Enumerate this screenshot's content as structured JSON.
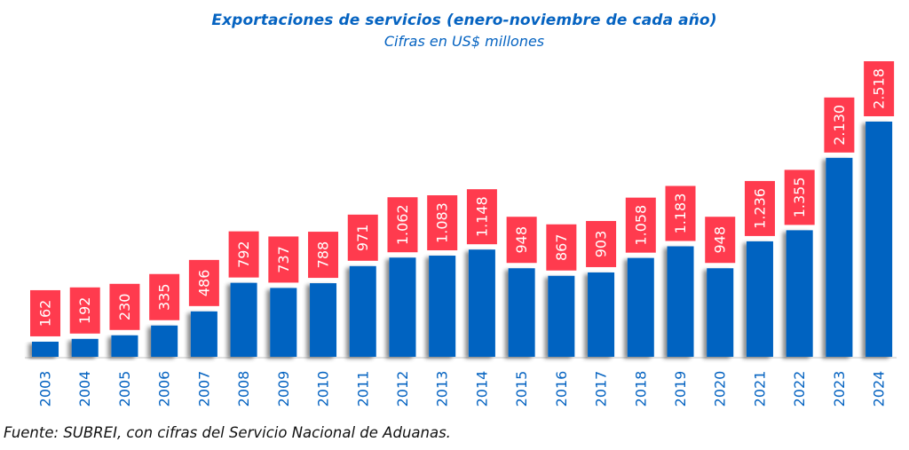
{
  "chart_data": {
    "type": "bar",
    "title": "Exportaciones de servicios (enero-noviembre de cada año)",
    "subtitle": "Cifras en US$ millones",
    "xlabel": "",
    "ylabel": "",
    "categories": [
      "2003",
      "2004",
      "2005",
      "2006",
      "2007",
      "2008",
      "2009",
      "2010",
      "2011",
      "2012",
      "2013",
      "2014",
      "2015",
      "2016",
      "2017",
      "2018",
      "2019",
      "2020",
      "2021",
      "2022",
      "2023",
      "2024"
    ],
    "values": [
      162,
      192,
      230,
      335,
      486,
      792,
      737,
      788,
      971,
      1062,
      1083,
      1148,
      948,
      867,
      903,
      1058,
      1183,
      948,
      1236,
      1355,
      2130,
      2518
    ],
    "value_labels": [
      "162",
      "192",
      "230",
      "335",
      "486",
      "792",
      "737",
      "788",
      "971",
      "1.062",
      "1.083",
      "1.148",
      "948",
      "867",
      "903",
      "1.058",
      "1.183",
      "948",
      "1.236",
      "1.355",
      "2.130",
      "2.518"
    ],
    "ylim": [
      0,
      2518
    ],
    "grid": false,
    "legend": "none",
    "colors": {
      "bar": "#0563c1",
      "label_box": "#ff3b4e",
      "label_text": "#ffffff",
      "tick_text": "#0563c1",
      "title": "#0563c1"
    }
  },
  "source_note": "Fuente: SUBREI, con cifras del Servicio Nacional de Aduanas."
}
